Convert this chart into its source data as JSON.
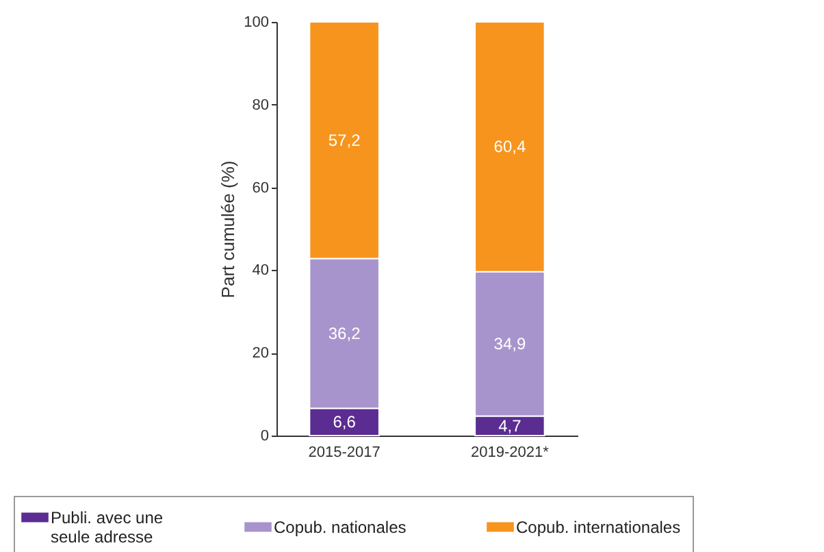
{
  "chart_data": {
    "type": "bar",
    "stacked": true,
    "ylabel": "Part cumulée (%)",
    "categories": [
      "2015-2017",
      "2019-2021*"
    ],
    "series": [
      {
        "name": "Publi. avec une seule adresse",
        "color": "#5b2c91",
        "values": [
          6.6,
          4.7
        ],
        "value_labels": [
          "6,6",
          "4,7"
        ]
      },
      {
        "name": "Copub. nationales",
        "color": "#a894cc",
        "values": [
          36.2,
          34.9
        ],
        "value_labels": [
          "36,2",
          "34,9"
        ]
      },
      {
        "name": "Copub. internationales",
        "color": "#f7941d",
        "values": [
          57.2,
          60.4
        ],
        "value_labels": [
          "57,2",
          "60,4"
        ]
      }
    ],
    "ylim": [
      0,
      100
    ],
    "yticks": [
      0,
      20,
      40,
      60,
      80,
      100
    ],
    "grid": false,
    "legend": "bottom"
  }
}
